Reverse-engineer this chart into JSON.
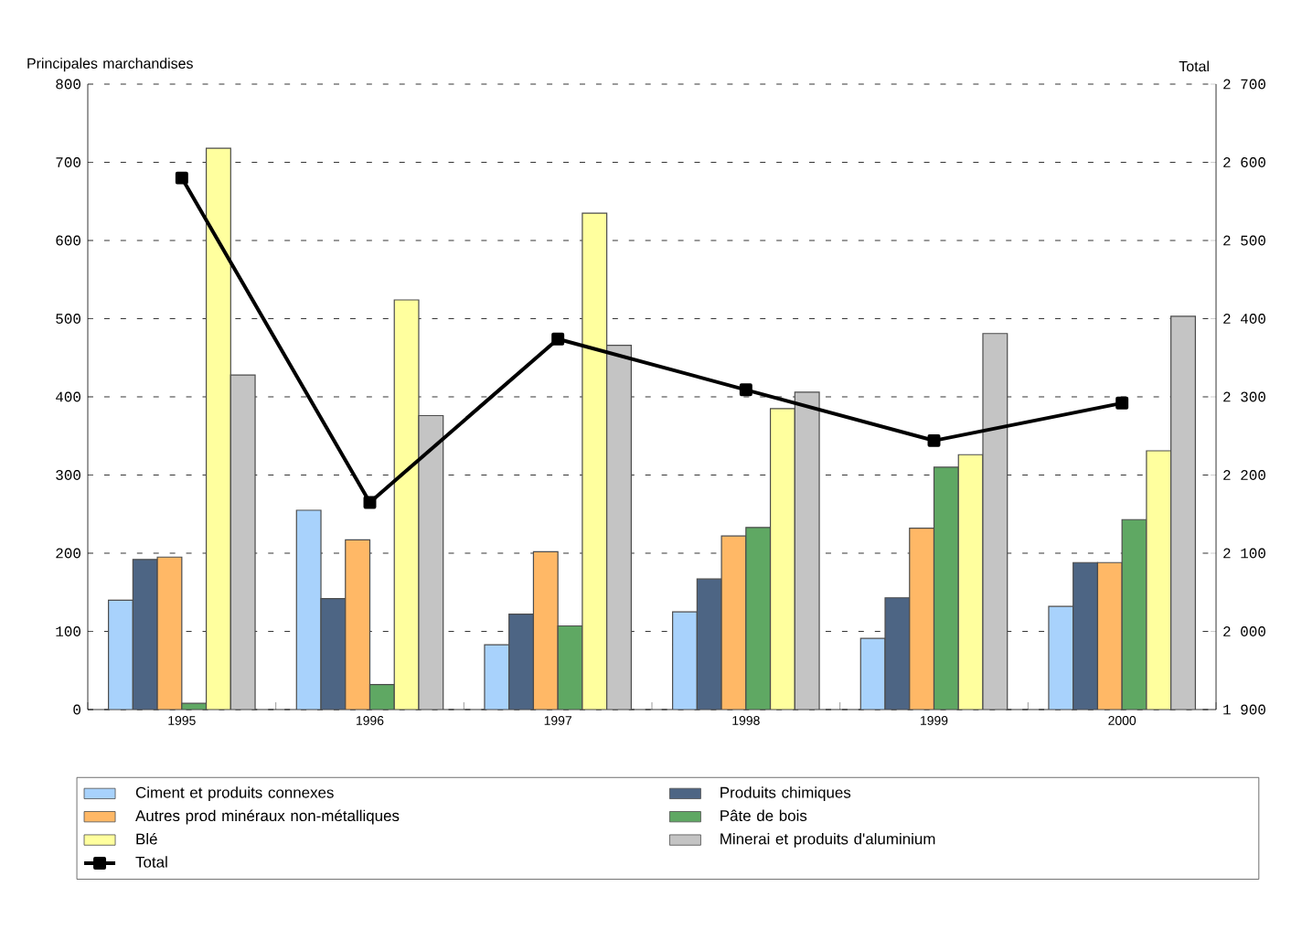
{
  "chart_data": {
    "type": "bar",
    "ylabel": "Principales marchandises",
    "y2label": "Total",
    "categories": [
      "1995",
      "1996",
      "1997",
      "1998",
      "1999",
      "2000"
    ],
    "series": [
      {
        "name": "Ciment et produits connexes",
        "color": "#a8d2fc",
        "values": [
          140,
          255,
          83,
          125,
          91,
          132
        ]
      },
      {
        "name": "Produits chimiques",
        "color": "#4d6584",
        "values": [
          192,
          142,
          122,
          167,
          143,
          188
        ]
      },
      {
        "name": "Autres prod minéraux non-métalliques",
        "color": "#ffb866",
        "values": [
          195,
          217,
          202,
          222,
          232,
          188
        ]
      },
      {
        "name": "Pâte de bois",
        "color": "#5fa863",
        "values": [
          8,
          32,
          107,
          233,
          310,
          243
        ]
      },
      {
        "name": "Blé",
        "color": "#ffff9e",
        "values": [
          718,
          524,
          635,
          385,
          326,
          331
        ]
      },
      {
        "name": "Minerai et produits d'aluminium",
        "color": "#c4c4c4",
        "values": [
          428,
          376,
          466,
          406,
          481,
          503
        ]
      },
      {
        "name": "Total",
        "type": "line",
        "axis": "y2",
        "color": "#000000",
        "marker": "square",
        "values": [
          2580,
          2165,
          2374,
          2309,
          2244,
          2292
        ]
      }
    ],
    "ylim": [
      0,
      800
    ],
    "yticks": [
      0,
      100,
      200,
      300,
      400,
      500,
      600,
      700,
      800
    ],
    "y2lim": [
      1900,
      2700
    ],
    "y2ticks": [
      {
        "value": 1900,
        "label": "1 900"
      },
      {
        "value": 2000,
        "label": "2 000"
      },
      {
        "value": 2100,
        "label": "2 100"
      },
      {
        "value": 2200,
        "label": "2 200"
      },
      {
        "value": 2300,
        "label": "2 300"
      },
      {
        "value": 2400,
        "label": "2 400"
      },
      {
        "value": 2500,
        "label": "2 500"
      },
      {
        "value": 2600,
        "label": "2 600"
      },
      {
        "value": 2700,
        "label": "2 700"
      }
    ],
    "grid": "y",
    "legend": "bottom"
  }
}
